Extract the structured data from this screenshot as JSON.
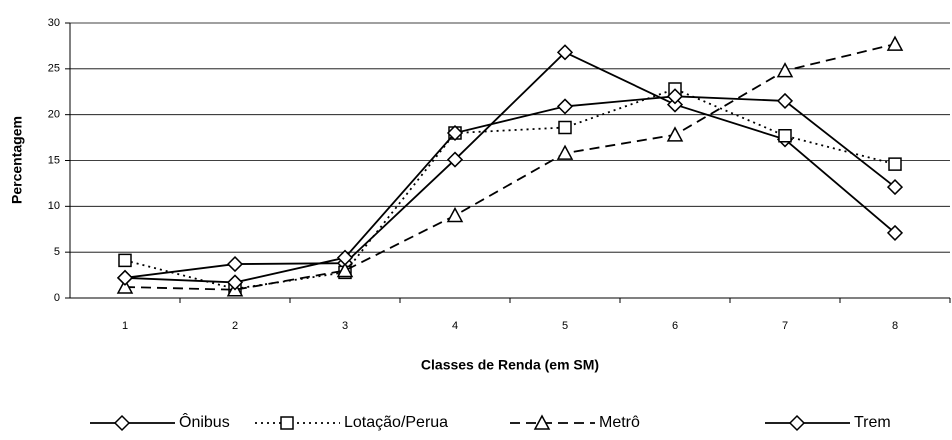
{
  "chart_data": {
    "type": "line",
    "x_label": "Classes de Renda (em SM)",
    "y_label": "Percentagem",
    "categories": [
      "1",
      "2",
      "3",
      "4",
      "5",
      "6",
      "7",
      "8"
    ],
    "series": [
      {
        "name": "Ônibus",
        "color": "#000000",
        "style": "solid",
        "marker": "diamond",
        "values": [
          2.2,
          3.7,
          3.8,
          15.1,
          26.8,
          21.1,
          17.3,
          7.1
        ]
      },
      {
        "name": "Lotação/Perua",
        "color": "#000000",
        "style": "dotted",
        "marker": "square",
        "values": [
          4.1,
          1.0,
          2.8,
          18.0,
          18.6,
          22.8,
          17.7,
          14.6
        ]
      },
      {
        "name": "Metrô",
        "color": "#000000",
        "style": "dashed",
        "marker": "triangle",
        "values": [
          1.2,
          0.9,
          3.0,
          9.0,
          15.8,
          17.8,
          24.8,
          27.7
        ]
      },
      {
        "name": "Trem",
        "color": "#000000",
        "style": "solid",
        "marker": "diamond",
        "values": [
          2.2,
          1.7,
          4.4,
          18.0,
          20.9,
          22.0,
          21.5,
          12.1
        ]
      }
    ],
    "ylim": [
      0,
      30
    ],
    "yticks": [
      0,
      5,
      10,
      15,
      20,
      25,
      30
    ],
    "grid": true,
    "legend": "bottom"
  }
}
